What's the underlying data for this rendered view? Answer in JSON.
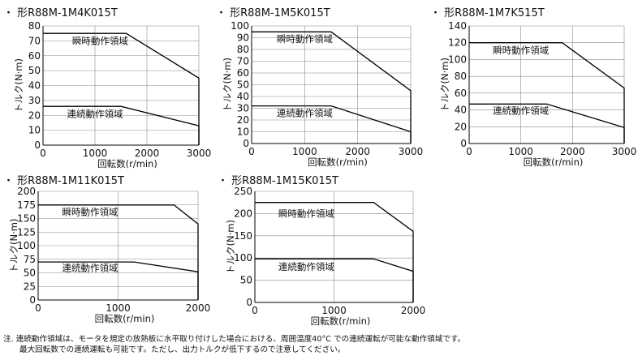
{
  "charts": [
    {
      "title": "・ 形R88M-1M4K015T",
      "xticks": [
        "0",
        "1000",
        "2000",
        "3000"
      ],
      "yticks": [
        "0",
        "10",
        "20",
        "30",
        "40",
        "50",
        "60",
        "70",
        "80"
      ]
    },
    {
      "title": "・ 形R88M-1M5K015T",
      "xticks": [
        "0",
        "1000",
        "2000",
        "3000"
      ],
      "yticks": [
        "0",
        "10",
        "20",
        "30",
        "40",
        "50",
        "60",
        "70",
        "80",
        "90",
        "100"
      ]
    },
    {
      "title": "・ 形R88M-1M7K515T",
      "xticks": [
        "0",
        "1000",
        "2000",
        "3000"
      ],
      "yticks": [
        "0",
        "20",
        "40",
        "60",
        "80",
        "100",
        "120",
        "140"
      ]
    },
    {
      "title": "・ 形R88M-1M11K015T",
      "xticks": [
        "0",
        "1000",
        "2000"
      ],
      "yticks": [
        "0",
        "25",
        "50",
        "75",
        "100",
        "125",
        "150",
        "175",
        "200"
      ]
    },
    {
      "title": "・ 形R88M-1M15K015T",
      "xticks": [
        "0",
        "1000",
        "2000"
      ],
      "yticks": [
        "0",
        "50",
        "100",
        "150",
        "200",
        "250"
      ]
    }
  ],
  "labels": {
    "ylabel": "トルク(N·m)",
    "xlabel": "回転数(r/min)",
    "instant": "瞬時動作領域",
    "continuous": "連続動作領域"
  },
  "note": {
    "line1": "注. 連続動作領域は、モータを規定の放熱板に水平取り付けした場合における、周囲温度40°C での連続運転が可能な動作領域です。",
    "line2": "最大回転数での連続運転も可能です。ただし、出力トルクが低下するので注意してください。"
  },
  "colors": {
    "curve": "#000000",
    "grid": "#888888",
    "axis": "#000000"
  },
  "chart_data": [
    {
      "type": "line",
      "title": "・ 形R88M-1M4K015T",
      "xlabel": "回転数(r/min)",
      "ylabel": "トルク(N·m)",
      "xlim": [
        0,
        3000
      ],
      "ylim": [
        0,
        80
      ],
      "grid": true,
      "series": [
        {
          "name": "瞬時動作領域",
          "x": [
            0,
            1600,
            3000
          ],
          "y": [
            75,
            75,
            45
          ],
          "label_pos": [
            1100,
            70
          ]
        },
        {
          "name": "連続動作領域",
          "x": [
            0,
            1500,
            3000
          ],
          "y": [
            26,
            26,
            13
          ],
          "label_pos": [
            1000,
            21
          ]
        }
      ]
    },
    {
      "type": "line",
      "title": "・ 形R88M-1M5K015T",
      "xlabel": "回転数(r/min)",
      "ylabel": "トルク(N·m)",
      "xlim": [
        0,
        3000
      ],
      "ylim": [
        0,
        100
      ],
      "grid": true,
      "series": [
        {
          "name": "瞬時動作領域",
          "x": [
            0,
            1500,
            3000
          ],
          "y": [
            95,
            95,
            45
          ],
          "label_pos": [
            1000,
            89
          ]
        },
        {
          "name": "連続動作領域",
          "x": [
            0,
            1500,
            3000
          ],
          "y": [
            32,
            32,
            10
          ],
          "label_pos": [
            1000,
            26
          ]
        }
      ]
    },
    {
      "type": "line",
      "title": "・ 形R88M-1M7K515T",
      "xlabel": "回転数(r/min)",
      "ylabel": "トルク(N·m)",
      "xlim": [
        0,
        3000
      ],
      "ylim": [
        0,
        140
      ],
      "grid": true,
      "series": [
        {
          "name": "瞬時動作領域",
          "x": [
            0,
            1800,
            3000
          ],
          "y": [
            120,
            120,
            66
          ],
          "label_pos": [
            1000,
            111
          ]
        },
        {
          "name": "連続動作領域",
          "x": [
            0,
            1500,
            3000
          ],
          "y": [
            47,
            47,
            19
          ],
          "label_pos": [
            1000,
            39
          ]
        }
      ]
    },
    {
      "type": "line",
      "title": "・ 形R88M-1M11K015T",
      "xlabel": "回転数(r/min)",
      "ylabel": "トルク(N·m)",
      "xlim": [
        0,
        2000
      ],
      "ylim": [
        0,
        200
      ],
      "grid": true,
      "series": [
        {
          "name": "瞬時動作領域",
          "x": [
            0,
            1700,
            2000
          ],
          "y": [
            175,
            175,
            140
          ],
          "label_pos": [
            650,
            162
          ]
        },
        {
          "name": "連続動作領域",
          "x": [
            0,
            1200,
            2000
          ],
          "y": [
            70,
            70,
            52
          ],
          "label_pos": [
            650,
            59
          ]
        }
      ]
    },
    {
      "type": "line",
      "title": "・ 形R88M-1M15K015T",
      "xlabel": "回転数(r/min)",
      "ylabel": "トルク(N·m)",
      "xlim": [
        0,
        2000
      ],
      "ylim": [
        0,
        250
      ],
      "grid": true,
      "series": [
        {
          "name": "瞬時動作領域",
          "x": [
            0,
            1500,
            2000
          ],
          "y": [
            225,
            225,
            160
          ],
          "label_pos": [
            650,
            200
          ]
        },
        {
          "name": "連続動作領域",
          "x": [
            0,
            1500,
            2000
          ],
          "y": [
            98,
            98,
            70
          ],
          "label_pos": [
            650,
            80
          ]
        }
      ]
    }
  ]
}
